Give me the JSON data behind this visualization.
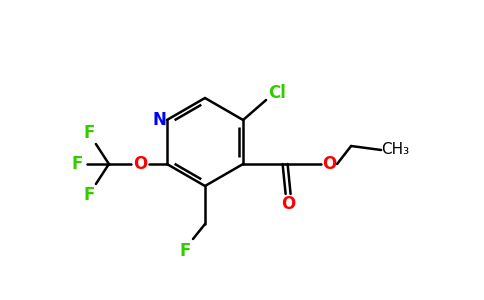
{
  "background_color": "#ffffff",
  "bond_color": "#000000",
  "atom_colors": {
    "N": "#0000ff",
    "O": "#ff0000",
    "F": "#33cc00",
    "Cl": "#33cc00",
    "C": "#000000"
  },
  "figsize": [
    4.84,
    3.0
  ],
  "dpi": 100
}
